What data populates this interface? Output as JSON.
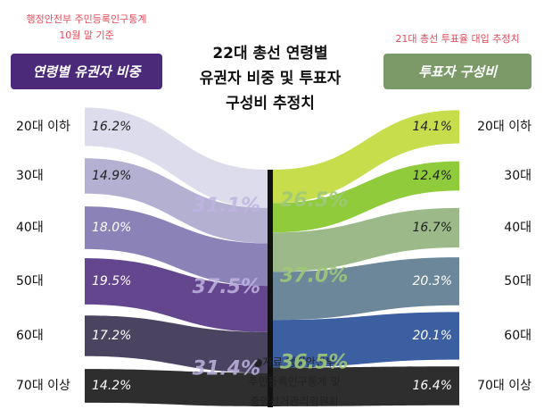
{
  "chart_data": {
    "type": "sankey",
    "title": [
      "22대 총선 연령별",
      "유권자 비중 및 투표자",
      "구성비 추정치"
    ],
    "left_note": [
      "행정안전부 주민등록인구통계",
      "10월 말 기준"
    ],
    "right_note": "21대 총선 투표율 대입 추정치",
    "source": [
      "●자료 행정안전부",
      "주민등록인구통계 및",
      "중앙선거관리위원회"
    ],
    "categories": [
      "20대 이하",
      "30대",
      "40대",
      "50대",
      "60대",
      "70대 이상"
    ],
    "series": [
      {
        "name": "연령별 유권자 비중",
        "color": "#4b2a7a",
        "colors": [
          "#dcdcec",
          "#b3b0d2",
          "#8b83b8",
          "#64468f",
          "#4a4460",
          "#2e2e2e"
        ],
        "values": [
          16.2,
          14.9,
          18.0,
          19.5,
          17.2,
          14.2
        ],
        "value_labels": [
          "16.2%",
          "14.9%",
          "18.0%",
          "19.5%",
          "17.2%",
          "14.2%"
        ],
        "group_totals": [
          31.1,
          37.5,
          31.4
        ],
        "group_labels": [
          "31.1%",
          "37.5%",
          "31.4%"
        ]
      },
      {
        "name": "투표자 구성비",
        "color": "#7b9a68",
        "colors": [
          "#c8dd4c",
          "#8fcb3b",
          "#9cba89",
          "#6c8799",
          "#3b5fa0",
          "#2e2e2e"
        ],
        "values": [
          14.1,
          12.4,
          16.7,
          20.3,
          20.1,
          16.4
        ],
        "value_labels": [
          "14.1%",
          "12.4%",
          "16.7%",
          "20.3%",
          "20.1%",
          "16.4%"
        ],
        "group_totals": [
          26.5,
          37.0,
          36.5
        ],
        "group_labels": [
          "26.5%",
          "37.0%",
          "36.5%"
        ]
      }
    ]
  }
}
